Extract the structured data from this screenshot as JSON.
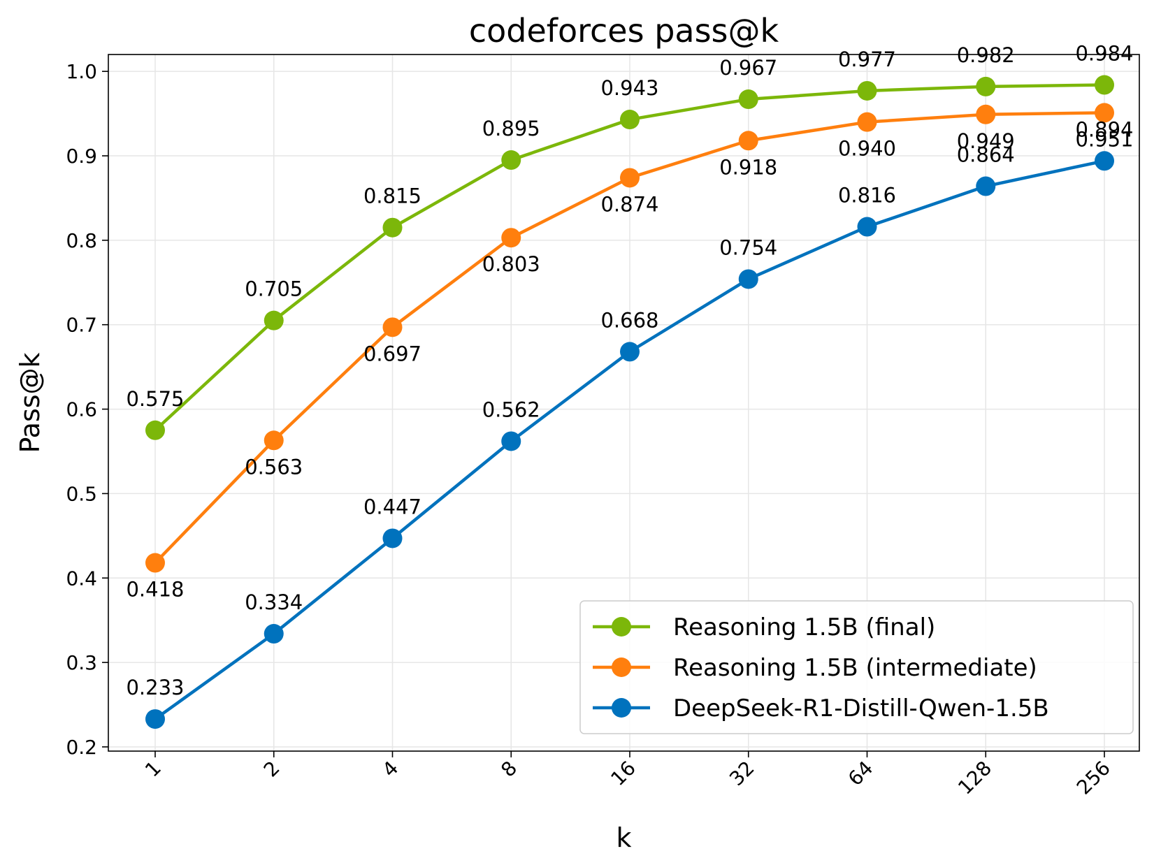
{
  "chart_data": {
    "type": "line",
    "title": "codeforces pass@k",
    "xlabel": "k",
    "ylabel": "Pass@k",
    "categories": [
      "1",
      "2",
      "4",
      "8",
      "16",
      "32",
      "64",
      "128",
      "256"
    ],
    "ylim": [
      0.195,
      1.02
    ],
    "yticks": [
      "0.2",
      "0.3",
      "0.4",
      "0.5",
      "0.6",
      "0.7",
      "0.8",
      "0.9",
      "1.0"
    ],
    "grid": true,
    "legend_position": "bottom-right",
    "series": [
      {
        "name": "Reasoning 1.5B (final)",
        "color": "#7cb70a",
        "label_position": "above",
        "values": [
          0.575,
          0.705,
          0.815,
          0.895,
          0.943,
          0.967,
          0.977,
          0.982,
          0.984
        ],
        "labels": [
          "0.575",
          "0.705",
          "0.815",
          "0.895",
          "0.943",
          "0.967",
          "0.977",
          "0.982",
          "0.984"
        ]
      },
      {
        "name": "Reasoning 1.5B (intermediate)",
        "color": "#ff7f0e",
        "label_position": "below",
        "values": [
          0.418,
          0.563,
          0.697,
          0.803,
          0.874,
          0.918,
          0.94,
          0.949,
          0.951
        ],
        "labels": [
          "0.418",
          "0.563",
          "0.697",
          "0.803",
          "0.874",
          "0.918",
          "0.940",
          "0.949",
          "0.951"
        ]
      },
      {
        "name": "DeepSeek-R1-Distill-Qwen-1.5B",
        "color": "#0072bd",
        "label_position": "above",
        "values": [
          0.233,
          0.334,
          0.447,
          0.562,
          0.668,
          0.754,
          0.816,
          0.864,
          0.894
        ],
        "labels": [
          "0.233",
          "0.334",
          "0.447",
          "0.562",
          "0.668",
          "0.754",
          "0.816",
          "0.864",
          "0.894"
        ]
      }
    ]
  }
}
